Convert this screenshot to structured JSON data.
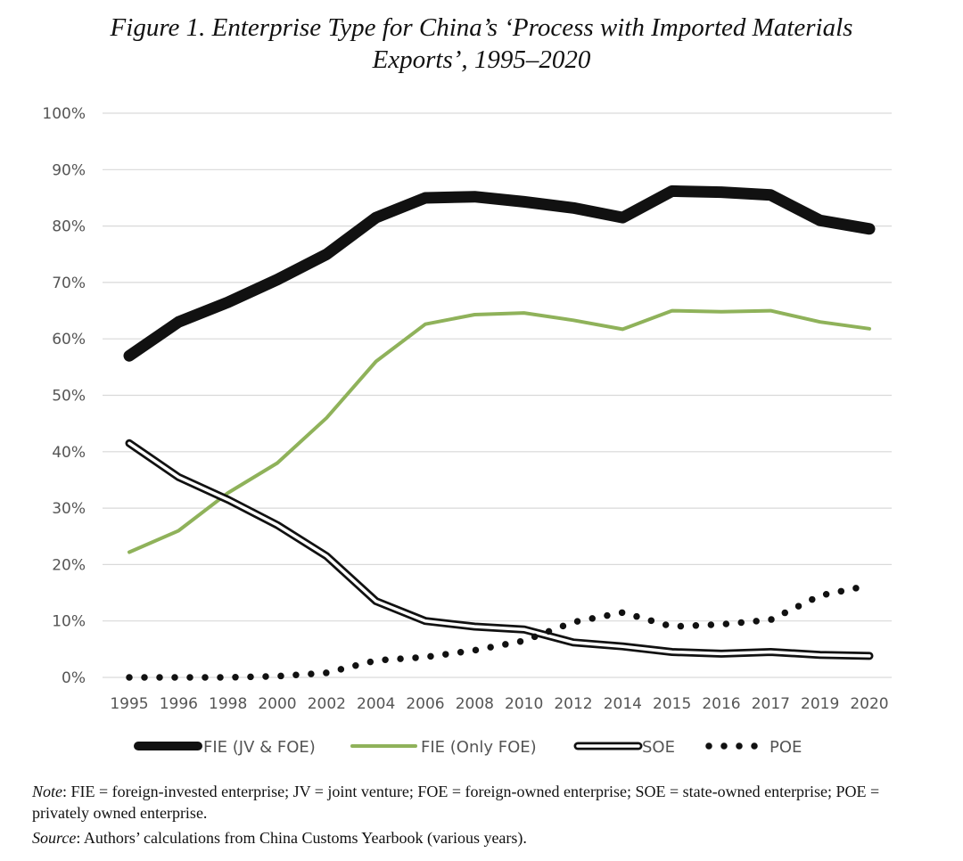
{
  "figure": {
    "title_line1": "Figure 1. Enterprise Type for China’s ‘Process with Imported Materials",
    "title_line2": "Exports’, 1995–2020"
  },
  "chart_data": {
    "type": "line",
    "title": "Figure 1. Enterprise Type for China’s ‘Process with Imported Materials Exports’, 1995–2020",
    "xlabel": "",
    "ylabel": "",
    "ylim": [
      0,
      100
    ],
    "y_ticks": [
      "0%",
      "10%",
      "20%",
      "30%",
      "40%",
      "50%",
      "60%",
      "70%",
      "80%",
      "90%",
      "100%"
    ],
    "categories": [
      "1995",
      "1996",
      "1998",
      "2000",
      "2002",
      "2004",
      "2006",
      "2008",
      "2010",
      "2012",
      "2014",
      "2015",
      "2016",
      "2017",
      "2019",
      "2020"
    ],
    "grid": true,
    "legend_position": "bottom",
    "series": [
      {
        "name": "FIE (JV & FOE)",
        "color": "#111111",
        "style": "thick",
        "values": [
          57,
          63,
          66.5,
          70.5,
          75,
          81.5,
          85,
          85.2,
          84.3,
          83.2,
          81.5,
          86.2,
          86,
          85.5,
          81,
          79.5
        ]
      },
      {
        "name": "FIE (Only FOE)",
        "color": "#8fb25a",
        "style": "solid",
        "values": [
          22.2,
          26,
          32.7,
          38,
          46,
          56,
          62.6,
          64.3,
          64.6,
          63.3,
          61.7,
          65,
          64.8,
          65,
          63,
          61.8
        ]
      },
      {
        "name": "SOE",
        "color": "#111111",
        "style": "double",
        "values": [
          41.5,
          35.5,
          31.5,
          27,
          21.5,
          13.5,
          10,
          9,
          8.5,
          6.2,
          5.5,
          4.5,
          4.2,
          4.5,
          4.0,
          3.8
        ]
      },
      {
        "name": "POE",
        "color": "#111111",
        "style": "dotted",
        "values": [
          0,
          0,
          0,
          0.2,
          0.8,
          3,
          3.6,
          4.8,
          6.5,
          9.8,
          11.5,
          9,
          9.4,
          10.2,
          14.5,
          16.3
        ]
      }
    ]
  },
  "notes": {
    "note_label": "Note",
    "note_text": ": FIE = foreign-invested enterprise; JV = joint venture; FOE = foreign-owned enterprise; SOE = state-owned enterprise; POE = privately owned enterprise.",
    "source_label": "Source",
    "source_text": ": Authors’ calculations from China Customs Yearbook (various years)."
  }
}
